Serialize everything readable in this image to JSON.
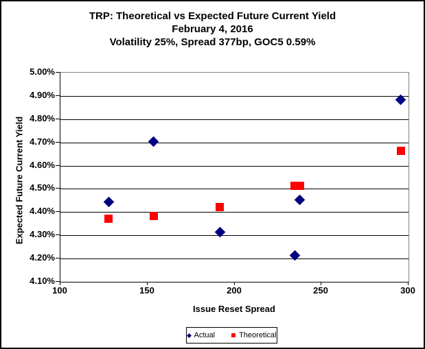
{
  "title": {
    "line1": "TRP: Theoretical vs Expected Future Current Yield",
    "line2": "February 4, 2016",
    "line3": "Volatility 25%, Spread 377bp, GOC5 0.59%"
  },
  "chart_data": {
    "type": "scatter",
    "title": "TRP: Theoretical vs Expected Future Current Yield",
    "subtitle_date": "February 4, 2016",
    "subtitle_params": "Volatility 25%, Spread 377bp, GOC5 0.59%",
    "xlabel": "Issue Reset Spread",
    "ylabel": "Expected Future Current Yield",
    "xlim": [
      100,
      300
    ],
    "x_ticks": [
      100,
      150,
      200,
      250,
      300
    ],
    "ylim": [
      4.1,
      5.0
    ],
    "y_ticks": [
      5.0,
      4.9,
      4.8,
      4.7,
      4.6,
      4.5,
      4.4,
      4.3,
      4.2,
      4.1
    ],
    "y_tick_suffix": "%",
    "grid": true,
    "legend_position": "bottom-center",
    "colors": {
      "actual": "#000080",
      "theoretical": "#FF0000"
    },
    "series": [
      {
        "name": "Actual",
        "marker": "diamond",
        "color": "#000080",
        "points": [
          {
            "x": 128,
            "y": 4.44
          },
          {
            "x": 154,
            "y": 4.7
          },
          {
            "x": 192,
            "y": 4.31
          },
          {
            "x": 235,
            "y": 4.21
          },
          {
            "x": 238,
            "y": 4.45
          },
          {
            "x": 296,
            "y": 4.88
          }
        ]
      },
      {
        "name": "Theoretical",
        "marker": "square",
        "color": "#FF0000",
        "points": [
          {
            "x": 128,
            "y": 4.37
          },
          {
            "x": 154,
            "y": 4.38
          },
          {
            "x": 192,
            "y": 4.42
          },
          {
            "x": 235,
            "y": 4.51
          },
          {
            "x": 238,
            "y": 4.51
          },
          {
            "x": 296,
            "y": 4.66
          }
        ]
      }
    ]
  }
}
